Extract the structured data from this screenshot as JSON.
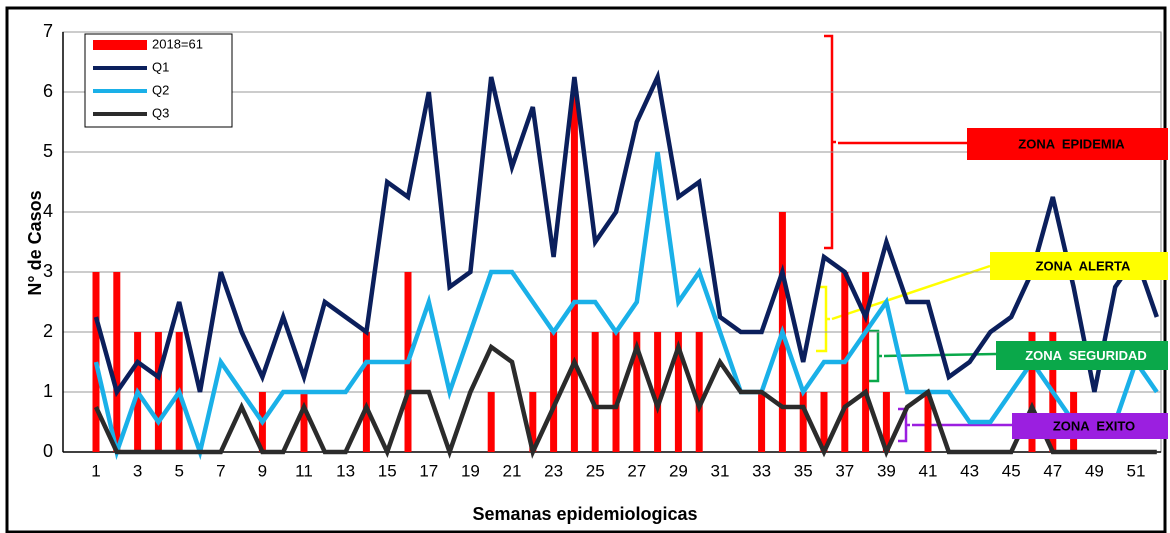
{
  "chart_data": {
    "type": "bar_line",
    "ylabel": "N° de Casos",
    "xlabel": "Semanas epidemiologicas",
    "categories": [
      1,
      null,
      3,
      null,
      5,
      null,
      7,
      null,
      9,
      null,
      11,
      null,
      13,
      null,
      15,
      null,
      17,
      null,
      19,
      null,
      21,
      null,
      23,
      null,
      25,
      null,
      27,
      null,
      29,
      null,
      31,
      null,
      33,
      null,
      35,
      null,
      37,
      null,
      39,
      null,
      41,
      null,
      43,
      null,
      45,
      null,
      47,
      null,
      49,
      null,
      51,
      null
    ],
    "ylim": [
      0,
      7
    ],
    "yticks": [
      0,
      1,
      2,
      3,
      4,
      5,
      6,
      7
    ],
    "grid": true,
    "legend": "upper left",
    "series": [
      {
        "name": "2018=61",
        "kind": "bar",
        "color": "#ff0000",
        "values": [
          3,
          3,
          2,
          2,
          2,
          0,
          0,
          0,
          1,
          0,
          1,
          0,
          0,
          2,
          0,
          3,
          0,
          0,
          0,
          1,
          0,
          1,
          2,
          6,
          2,
          2,
          2,
          2,
          2,
          2,
          0,
          0,
          1,
          4,
          1,
          1,
          3,
          3,
          1,
          0,
          1,
          0,
          0,
          0,
          0,
          2,
          2,
          1,
          0,
          0,
          0,
          0
        ]
      },
      {
        "name": "Q1",
        "kind": "line",
        "color": "#0b1f5c",
        "values": [
          2.25,
          1,
          1.5,
          1.25,
          2.5,
          1,
          3,
          2,
          1.25,
          2.25,
          1.25,
          2.5,
          2.25,
          2,
          4.5,
          4.25,
          6,
          2.75,
          3,
          6.25,
          4.75,
          5.75,
          3.25,
          6.25,
          3.5,
          4,
          5.5,
          6.25,
          4.25,
          4.5,
          2.25,
          2,
          2,
          3,
          1.5,
          3.25,
          3,
          2.25,
          3.5,
          2.5,
          2.5,
          1.25,
          1.5,
          2,
          2.25,
          3,
          4.25,
          2.75,
          1,
          2.75,
          3.25,
          2.25
        ]
      },
      {
        "name": "Q2",
        "kind": "line",
        "color": "#1ab0e8",
        "values": [
          1.5,
          0,
          1,
          0.5,
          1,
          0,
          1.5,
          1,
          0.5,
          1,
          1,
          1,
          1,
          1.5,
          1.5,
          1.5,
          2.5,
          1,
          2,
          3,
          3,
          2.5,
          2,
          2.5,
          2.5,
          2,
          2.5,
          5,
          2.5,
          3,
          2,
          1,
          1,
          2,
          1,
          1.5,
          1.5,
          2,
          2.5,
          1,
          1,
          1,
          0.5,
          0.5,
          1,
          1.5,
          1,
          0.5,
          0.5,
          0.5,
          1.5,
          1
        ]
      },
      {
        "name": "Q3",
        "kind": "line",
        "color": "#2b2b2b",
        "values": [
          0.75,
          0,
          0,
          0,
          0,
          0,
          0,
          0.75,
          0,
          0,
          0.75,
          0,
          0,
          0.75,
          0,
          1,
          1,
          0,
          1,
          1.75,
          1.5,
          0,
          0.75,
          1.5,
          0.75,
          0.75,
          1.75,
          0.75,
          1.75,
          0.75,
          1.5,
          1,
          1,
          0.75,
          0.75,
          0,
          0.75,
          1,
          0,
          0.75,
          1,
          0,
          0,
          0,
          0,
          0.75,
          0,
          0,
          0,
          0,
          0,
          0
        ]
      }
    ],
    "annotations": [
      {
        "text": "ZONA  EPIDEMIA",
        "color": "#ff0000"
      },
      {
        "text": "ZONA  ALERTA",
        "color": "#ffff00"
      },
      {
        "text": "ZONA  SEGURIDAD",
        "color": "#0aa84a"
      },
      {
        "text": "ZONA  EXITO",
        "color": "#9b1fe0"
      }
    ]
  }
}
